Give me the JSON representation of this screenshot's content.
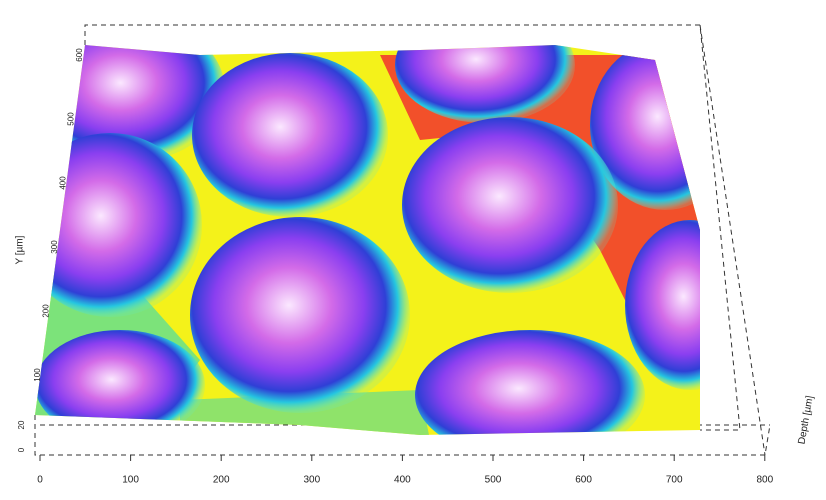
{
  "axes": {
    "x": {
      "ticks": [
        0,
        100,
        200,
        300,
        400,
        500,
        600,
        700,
        800
      ]
    },
    "y": {
      "label": "Y [µm]",
      "ticks": [
        100,
        200,
        300,
        400,
        500,
        600
      ]
    },
    "depth": {
      "label": "Depth [µm]",
      "ticks": [
        0,
        20
      ]
    }
  }
}
